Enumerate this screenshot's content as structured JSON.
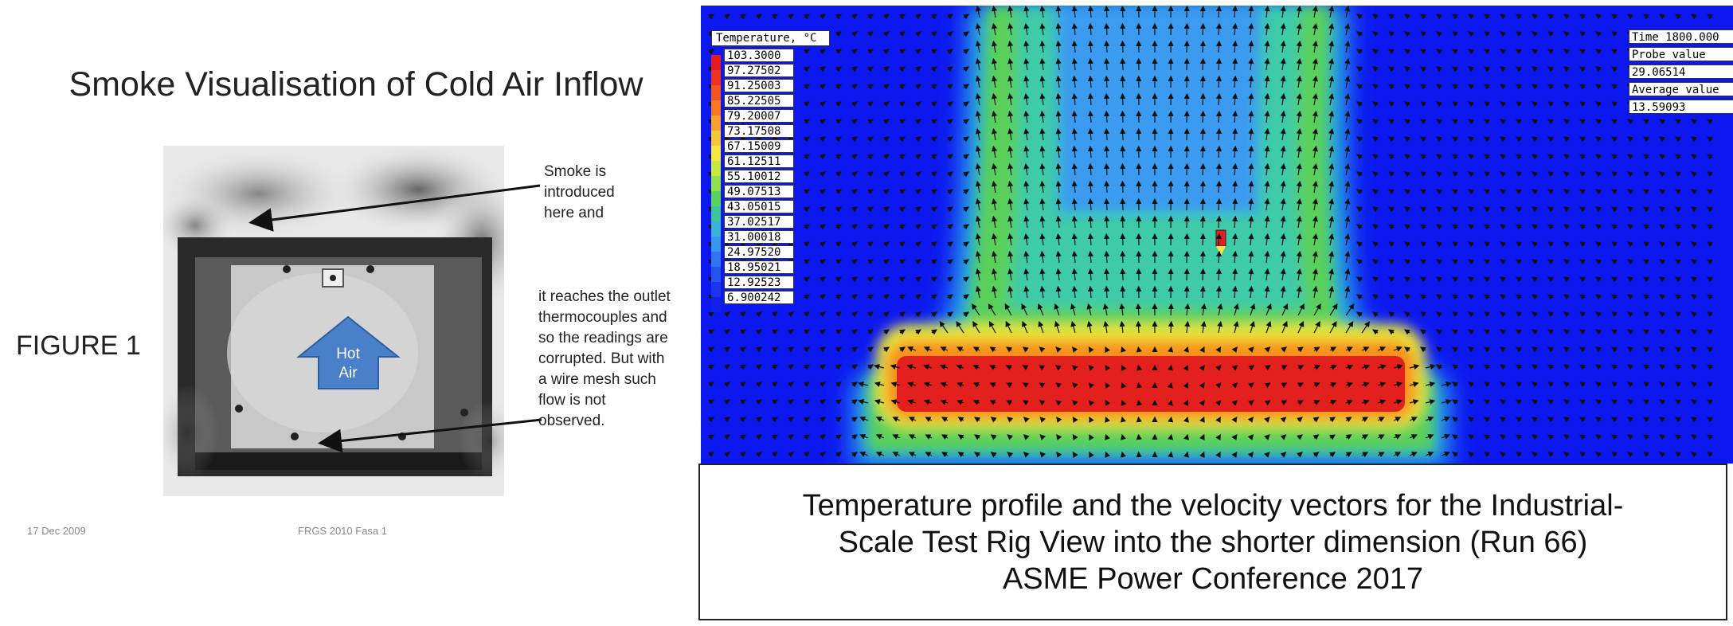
{
  "left_slide": {
    "title": "Smoke Visualisation of Cold Air Inflow",
    "figure_label": "FIGURE 1",
    "arrow_label_line1": "Hot",
    "arrow_label_line2": "Air",
    "note_1": "Smoke is introduced here and",
    "note_2": "it reaches the outlet thermocouples and so the readings are corrupted. But with a wire mesh such flow is not observed.",
    "footer_date": "17 Dec 2009",
    "footer_project": "FRGS 2010 Fasa 1"
  },
  "cfd": {
    "legend_title": "Temperature, °C",
    "legend_values": [
      "103.3000",
      "97.27502",
      "91.25003",
      "85.22505",
      "79.20007",
      "73.17508",
      "67.15009",
      "61.12511",
      "55.10012",
      "49.07513",
      "43.05015",
      "37.02517",
      "31.00018",
      "24.97520",
      "18.95021",
      "12.92523",
      "6.900242"
    ],
    "legend_colors": [
      "#e41a1c",
      "#f0321a",
      "#f5551c",
      "#f7781f",
      "#f9a12a",
      "#fbc533",
      "#f4e93c",
      "#c7ea40",
      "#8fe24a",
      "#56d65a",
      "#3bc69a",
      "#38b5d6",
      "#3597f0",
      "#2f74f2",
      "#2454ef",
      "#1a35ec",
      "#1020e8"
    ],
    "time_label": "Time 1800.000",
    "probe_label": "Probe value",
    "probe_value": "29.06514",
    "average_label": "Average value",
    "average_value": "13.59093"
  },
  "caption": {
    "line1": "Temperature profile and the velocity vectors for the Industrial-",
    "line2": "Scale Test Rig View into the shorter dimension (Run 66)",
    "line3": "ASME Power Conference 2017"
  }
}
